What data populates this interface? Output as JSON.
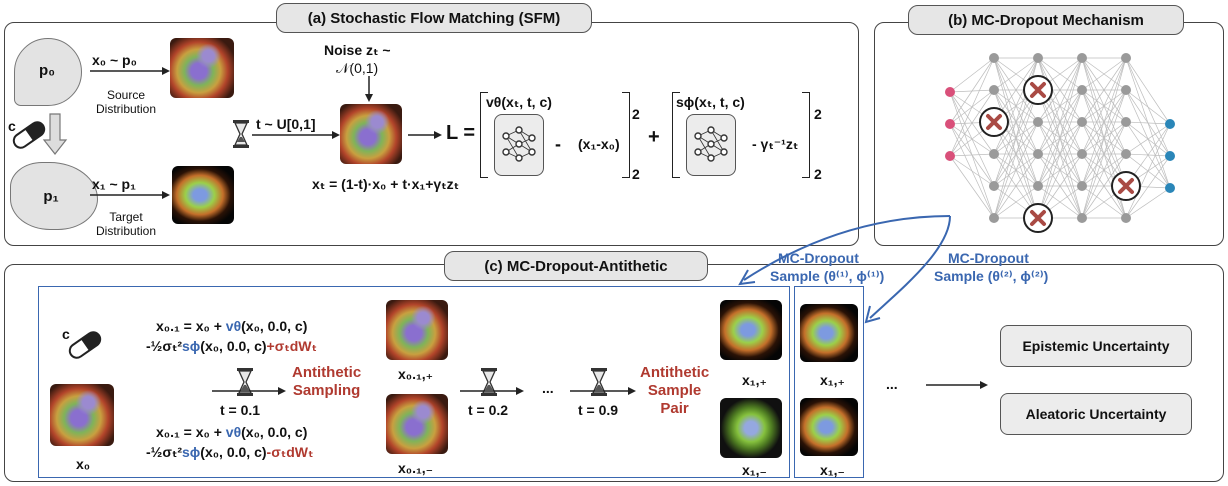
{
  "panel_a": {
    "title": "(a) Stochastic Flow Matching (SFM)",
    "p0_label": "p₀",
    "source_label": "Source\nDistribution",
    "p1_label": "p₁",
    "target_label": "Target\nDistribution",
    "x0_sample": "x₀ ~ p₀",
    "x1_sample": "x₁ ~ p₁",
    "condition": "c",
    "time_sample": "t ~ U[0,1]",
    "noise_line1": "Noise zₜ ~",
    "noise_line2": "𝒩(0,1)",
    "xt_eq": "xₜ = (1-t)·x₀ + t·x₁+γₜzₜ",
    "loss_L": "L =",
    "v_label": "vθ(xₜ, t, c)",
    "minus1": "-",
    "x_diff": "(x₁-x₀)",
    "plus": "+",
    "s_label": "sϕ(xₜ, t, c)",
    "gamma_term": "- γₜ⁻¹zₜ",
    "exp_top1": "2",
    "exp_bot1": "2",
    "exp_top2": "2",
    "exp_bot2": "2"
  },
  "panel_b": {
    "title": "(b) MC-Dropout Mechanism"
  },
  "mc_sample_1": {
    "line1": "MC-Dropout",
    "line2": "Sample (θ⁽¹⁾, ϕ⁽¹⁾)"
  },
  "mc_sample_2": {
    "line1": "MC-Dropout",
    "line2": "Sample (θ⁽²⁾, ϕ⁽²⁾)"
  },
  "panel_c": {
    "title": "(c) MC-Dropout-Antithetic",
    "condition": "c",
    "x0": "x₀",
    "eq_plus_1a": "x₀.₁ = x₀ + ",
    "eq_plus_1b": "vθ",
    "eq_plus_1c": "(x₀, 0.0, c)",
    "eq_plus_2a": "-½σₜ²",
    "eq_plus_2b": "sϕ",
    "eq_plus_2c": "(x₀, 0.0, c)",
    "eq_plus_2d": "+σₜdWₜ",
    "eq_minus_1a": "x₀.₁ = x₀ + ",
    "eq_minus_1b": "vθ",
    "eq_minus_1c": "(x₀, 0.0, c)",
    "eq_minus_2a": "-½σₜ²",
    "eq_minus_2b": "sϕ",
    "eq_minus_2c": "(x₀, 0.0, c)",
    "eq_minus_2d": "-σₜdWₜ",
    "t1": "t = 0.1",
    "antithetic_sampling": "Antithetic\nSampling",
    "x01_plus": "x₀.₁,₊",
    "x01_minus": "x₀.₁,₋",
    "t2": "t = 0.2",
    "dots1": "...",
    "t9": "t = 0.9",
    "antithetic_pair": "Antithetic\nSample\nPair",
    "x1_plus_a": "x₁,₊",
    "x1_minus_a": "x₁,₋",
    "x1_plus_b": "x₁,₊",
    "x1_minus_b": "x₁,₋",
    "dots2": "...",
    "epistemic": "Epistemic Uncertainty",
    "aleatoric": "Aleatoric Uncertainty"
  },
  "colors": {
    "red_accent": "#b03a30",
    "blue_accent": "#3a67b0",
    "input_node": "#d9507a",
    "output_node": "#2a86b8",
    "hidden_node": "#9a9a9a"
  }
}
